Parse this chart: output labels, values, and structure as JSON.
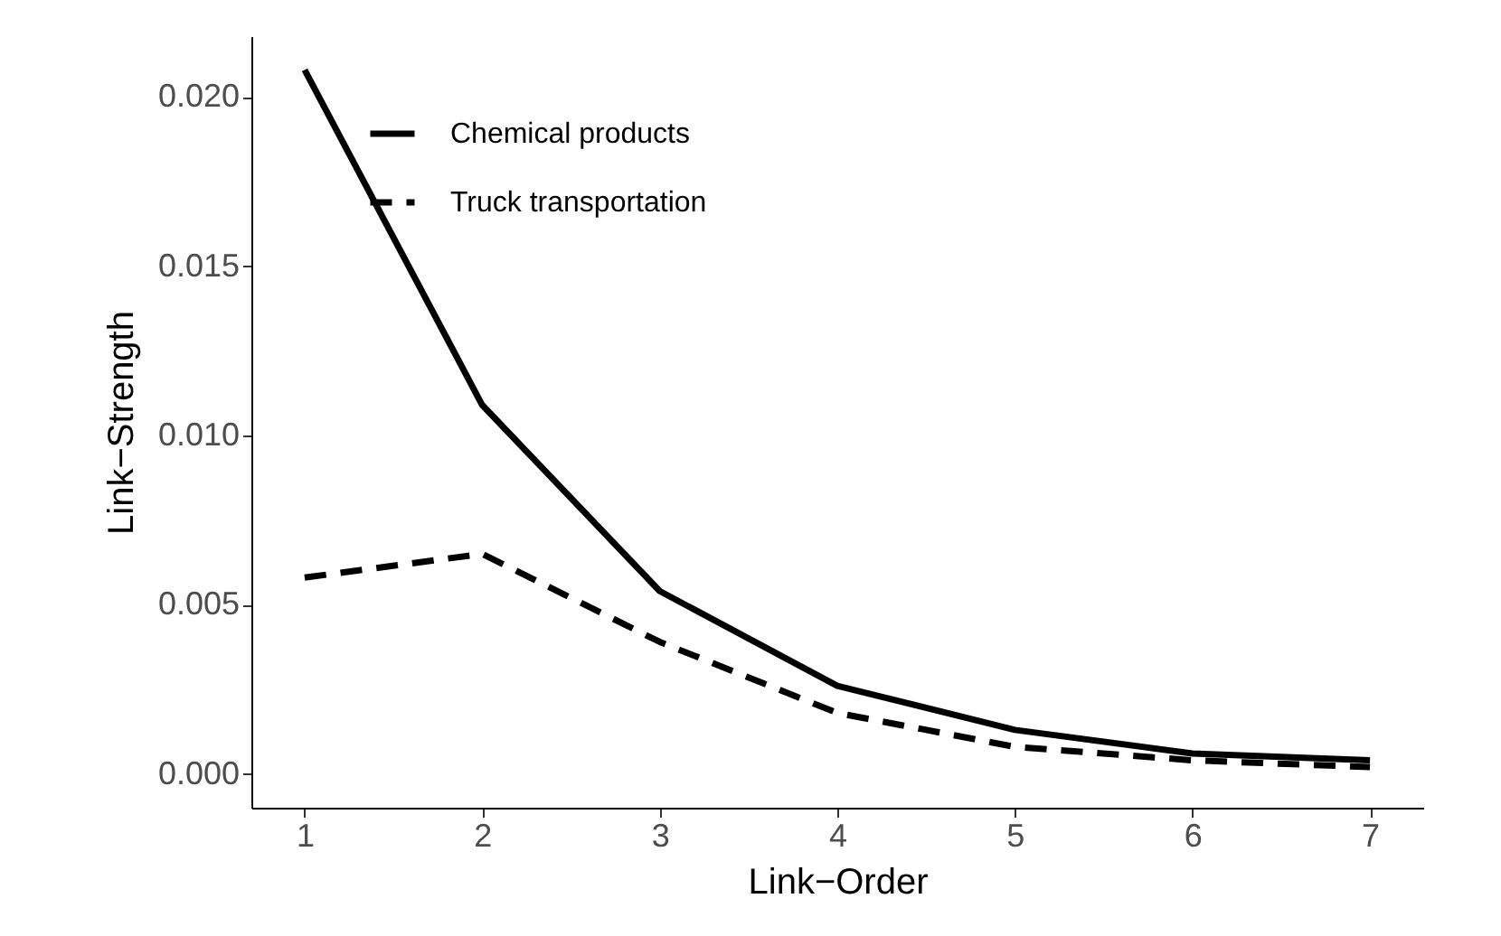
{
  "chart_data": {
    "type": "line",
    "xlabel": "Link−Order",
    "ylabel": "Link−Strength",
    "x": [
      1,
      2,
      3,
      4,
      5,
      6,
      7
    ],
    "series": [
      {
        "name": "Chemical products",
        "color": "#000000",
        "line_style": "solid",
        "values": [
          0.0208,
          0.0109,
          0.0054,
          0.0026,
          0.0013,
          0.0006,
          0.0004
        ]
      },
      {
        "name": "Truck transportation",
        "color": "#000000",
        "line_style": "dashed",
        "values": [
          0.0058,
          0.0065,
          0.0039,
          0.0018,
          0.0008,
          0.0004,
          0.0002
        ]
      }
    ],
    "xlim": [
      0.7,
      7.3
    ],
    "ylim": [
      -0.001,
      0.0218
    ],
    "xticks": [
      1,
      2,
      3,
      4,
      5,
      6,
      7
    ],
    "yticks": [
      {
        "value": 0,
        "label": "0.000"
      },
      {
        "value": 0.005,
        "label": "0.005"
      },
      {
        "value": 0.01,
        "label": "0.010"
      },
      {
        "value": 0.015,
        "label": "0.015"
      },
      {
        "value": 0.02,
        "label": "0.020"
      }
    ],
    "legend": "top left"
  }
}
